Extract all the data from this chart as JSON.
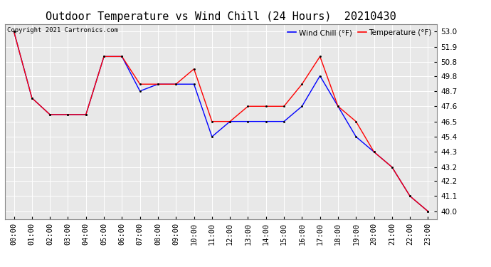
{
  "title": "Outdoor Temperature vs Wind Chill (24 Hours)  20210430",
  "copyright_text": "Copyright 2021 Cartronics.com",
  "legend_wind_chill": "Wind Chill (°F)",
  "legend_temperature": "Temperature (°F)",
  "x_labels": [
    "00:00",
    "01:00",
    "02:00",
    "03:00",
    "04:00",
    "05:00",
    "06:00",
    "07:00",
    "08:00",
    "09:00",
    "10:00",
    "11:00",
    "12:00",
    "13:00",
    "14:00",
    "15:00",
    "16:00",
    "17:00",
    "18:00",
    "19:00",
    "20:00",
    "21:00",
    "22:00",
    "23:00"
  ],
  "temperature": [
    53.0,
    48.2,
    47.0,
    47.0,
    47.0,
    51.2,
    51.2,
    49.2,
    49.2,
    49.2,
    50.3,
    46.5,
    46.5,
    47.6,
    47.6,
    47.6,
    49.2,
    51.2,
    47.6,
    46.5,
    44.3,
    43.2,
    41.1,
    40.0
  ],
  "wind_chill": [
    53.0,
    48.2,
    47.0,
    47.0,
    47.0,
    51.2,
    51.2,
    48.7,
    49.2,
    49.2,
    49.2,
    45.4,
    46.5,
    46.5,
    46.5,
    46.5,
    47.6,
    49.8,
    47.6,
    45.4,
    44.3,
    43.2,
    41.1,
    40.0
  ],
  "ylim_min": 39.45,
  "ylim_max": 53.55,
  "yticks": [
    40.0,
    41.1,
    42.2,
    43.2,
    44.3,
    45.4,
    46.5,
    47.6,
    48.7,
    49.8,
    50.8,
    51.9,
    53.0
  ],
  "temp_color": "#FF0000",
  "wind_color": "#0000FF",
  "bg_color": "#FFFFFF",
  "plot_bg_color": "#E8E8E8",
  "grid_color": "#FFFFFF",
  "title_fontsize": 11,
  "legend_fontsize": 7.5,
  "tick_fontsize": 7.5,
  "copyright_fontsize": 6.5
}
